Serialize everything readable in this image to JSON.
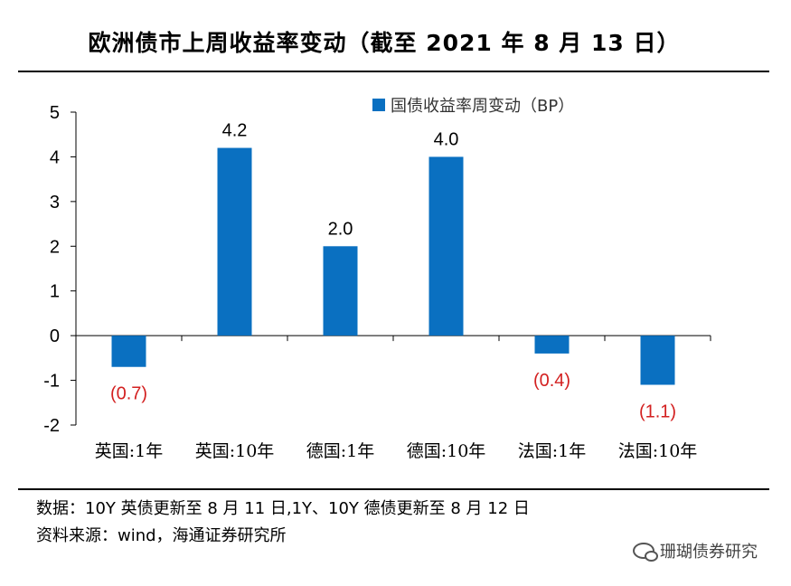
{
  "title": "欧洲债市上周收益率变动（截至 2021 年 8 月 13 日）",
  "notes": {
    "line1": "数据：10Y 英债更新至 8 月 11 日,1Y、10Y 德债更新至 8 月 12 日",
    "line2": "资料来源：wind，海通证券研究所"
  },
  "watermark": {
    "text": "珊瑚债券研究",
    "icon": "wechat-icon"
  },
  "chart_data": {
    "type": "bar",
    "categories": [
      "英国:1年",
      "英国:10年",
      "德国:1年",
      "德国:10年",
      "法国:1年",
      "法国:10年"
    ],
    "series": [
      {
        "name": "国债收益率周变动（BP）",
        "values": [
          -0.7,
          4.2,
          2.0,
          4.0,
          -0.4,
          -1.1
        ]
      }
    ],
    "data_labels": [
      "(0.7)",
      "4.2",
      "2.0",
      "4.0",
      "(0.4)",
      "(1.1)"
    ],
    "ylim": [
      -2,
      5
    ],
    "yticks": [
      -2,
      -1,
      0,
      1,
      2,
      3,
      4,
      5
    ],
    "grid": false,
    "legend_position": "top-right",
    "colors": {
      "bar": "#0a70c1",
      "negative_label": "#d32020",
      "axis": "#000000"
    }
  }
}
